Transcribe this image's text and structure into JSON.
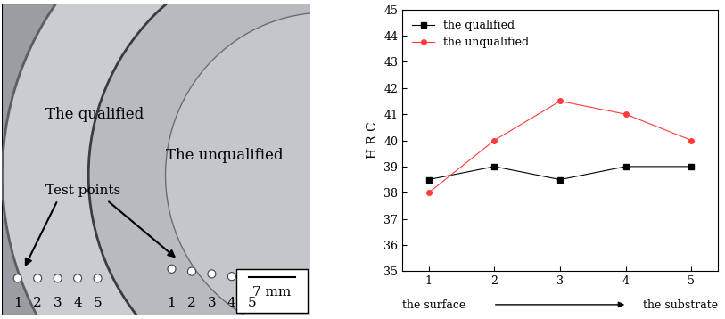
{
  "photo": {
    "regions": [
      "The qualified",
      "The unqualified"
    ],
    "pointer": "Test points",
    "test_point_labels": [
      "1",
      "2",
      "3",
      "4",
      "5"
    ],
    "scale_bar": "7 mm"
  },
  "chart_data": {
    "type": "line",
    "ylabel": "H R C",
    "annotations": [
      "the surface",
      "the substrate"
    ],
    "x": [
      1,
      2,
      3,
      4,
      5
    ],
    "series": [
      {
        "name": "the qualified",
        "color": "#000000",
        "marker": "square",
        "values": [
          38.5,
          39,
          38.5,
          39,
          39
        ]
      },
      {
        "name": "the unqualified",
        "color": "#ff3b3b",
        "marker": "circle",
        "values": [
          38,
          40,
          41.5,
          41,
          40
        ]
      }
    ],
    "xlim": [
      0.6,
      5.4
    ],
    "xticks": [
      1,
      2,
      3,
      4,
      5
    ],
    "ylim": [
      35,
      45
    ],
    "yticks": [
      35,
      36,
      37,
      38,
      39,
      40,
      41,
      42,
      43,
      44,
      45
    ],
    "grid": false,
    "legend": "upper left"
  }
}
